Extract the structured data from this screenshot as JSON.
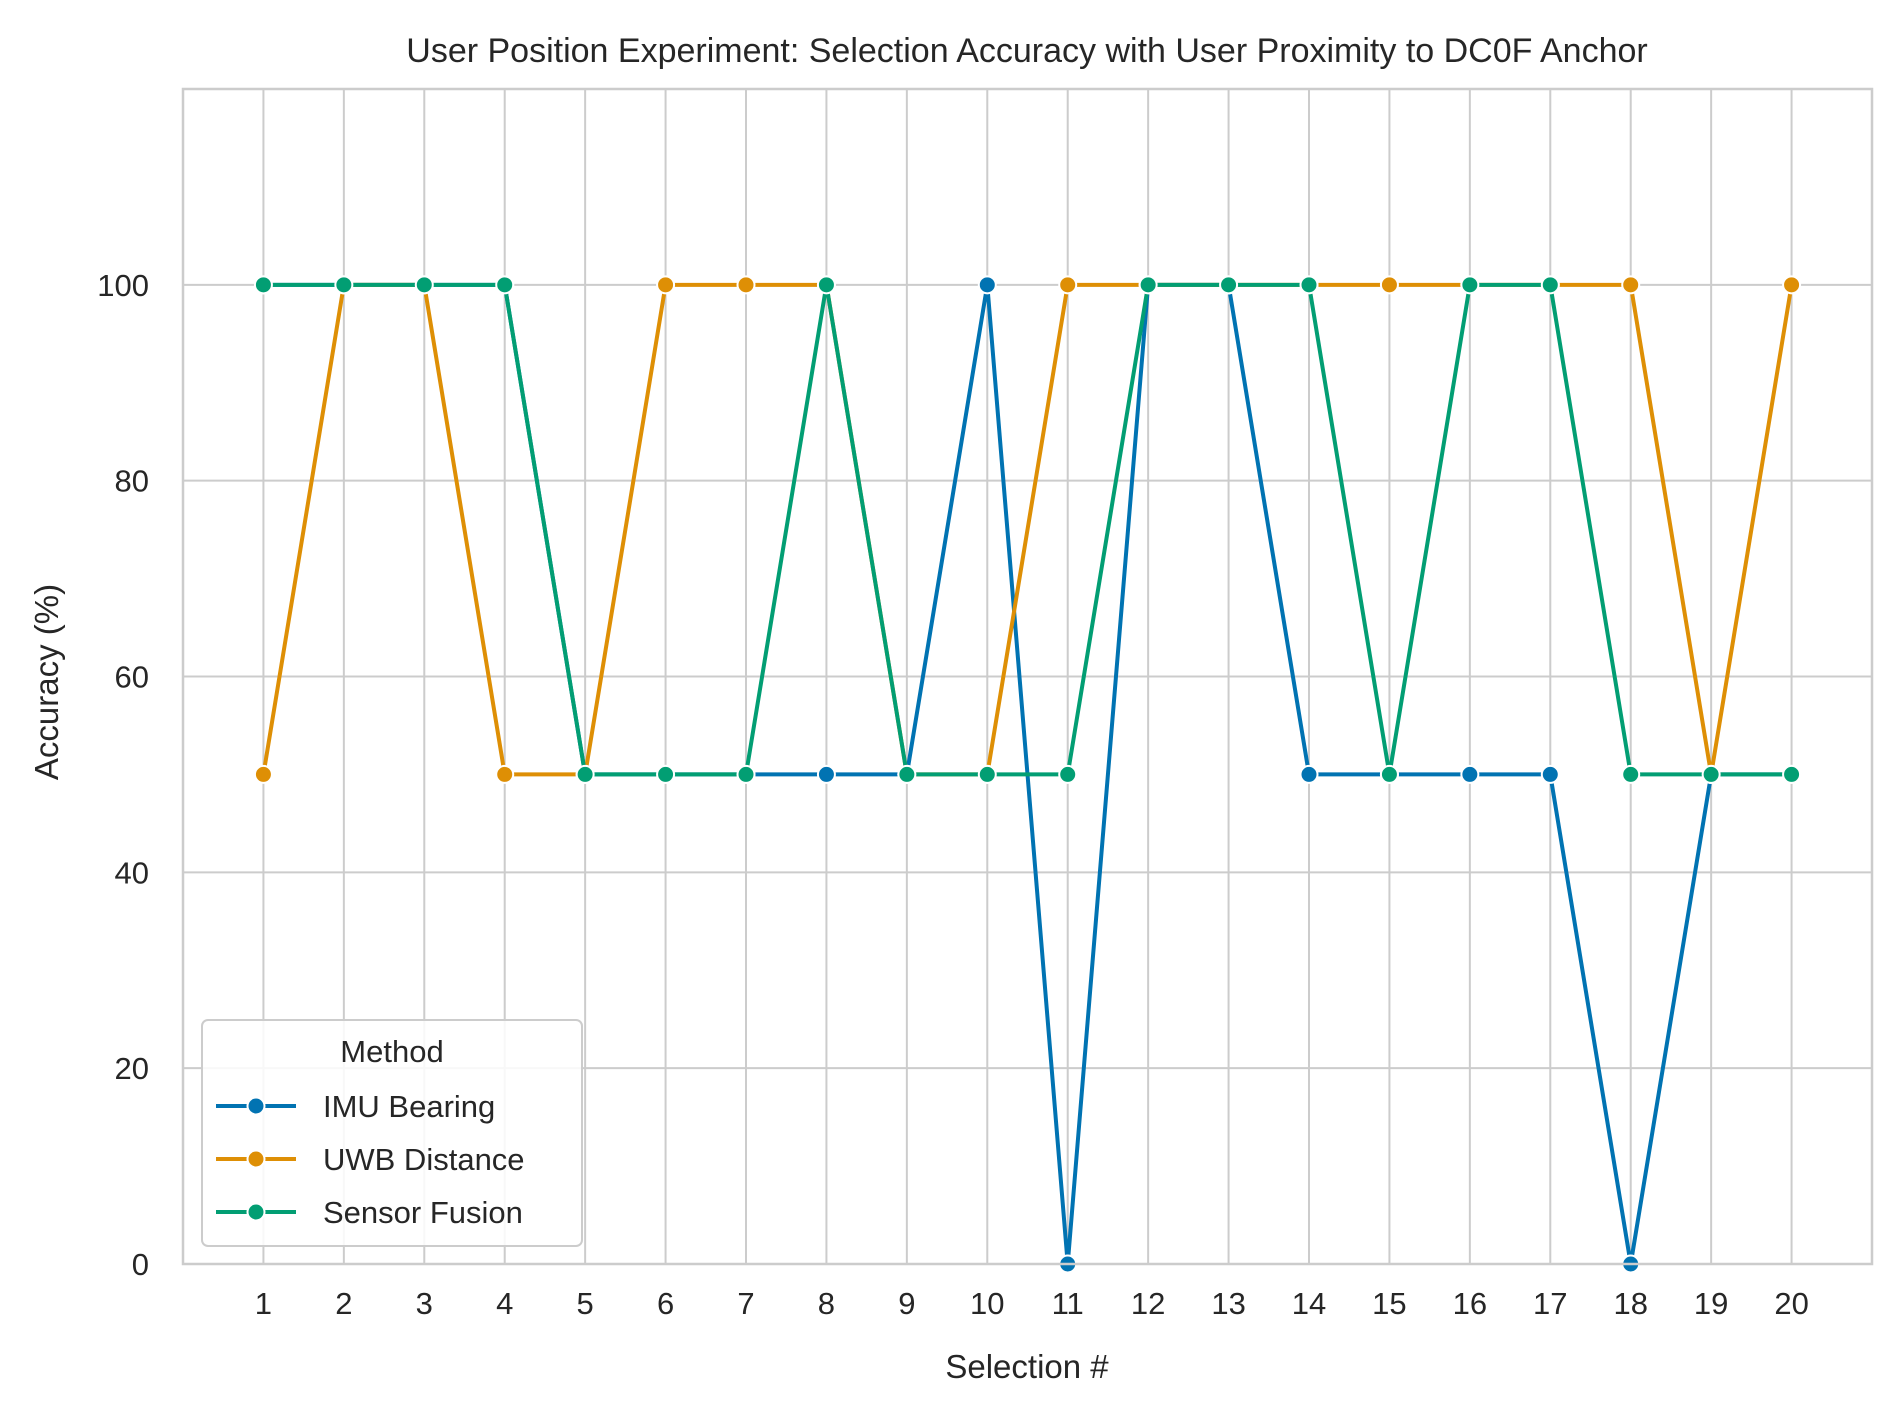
{
  "chart_data": {
    "type": "line",
    "title": "User Position Experiment: Selection Accuracy with User Proximity to DC0F Anchor",
    "xlabel": "Selection #",
    "ylabel": "Accuracy (%)",
    "x": [
      1,
      2,
      3,
      4,
      5,
      6,
      7,
      8,
      9,
      10,
      11,
      12,
      13,
      14,
      15,
      16,
      17,
      18,
      19,
      20
    ],
    "xlim": [
      0,
      21
    ],
    "ylim": [
      0,
      120
    ],
    "yticks": [
      0,
      20,
      40,
      60,
      80,
      100
    ],
    "grid": true,
    "legend": {
      "title": "Method",
      "placement": "bottom-left"
    },
    "series": [
      {
        "name": "IMU Bearing",
        "color": "#0173b2",
        "values": [
          100,
          100,
          100,
          100,
          50,
          50,
          50,
          50,
          50,
          100,
          0,
          100,
          100,
          50,
          50,
          50,
          50,
          0,
          50,
          50
        ]
      },
      {
        "name": "UWB Distance",
        "color": "#de8f05",
        "values": [
          50,
          100,
          100,
          50,
          50,
          100,
          100,
          100,
          50,
          50,
          100,
          100,
          100,
          100,
          100,
          100,
          100,
          100,
          50,
          100
        ]
      },
      {
        "name": "Sensor Fusion",
        "color": "#029e73",
        "values": [
          100,
          100,
          100,
          100,
          50,
          50,
          50,
          100,
          50,
          50,
          50,
          100,
          100,
          100,
          50,
          100,
          100,
          50,
          50,
          50
        ]
      }
    ]
  }
}
